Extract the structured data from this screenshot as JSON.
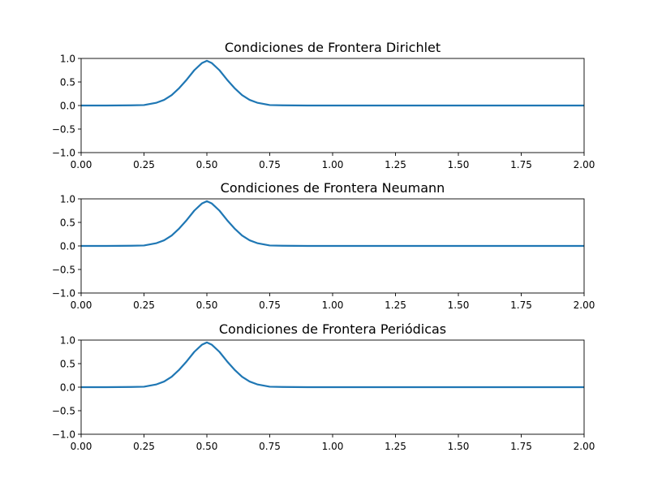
{
  "chart_data": [
    {
      "type": "line",
      "title": "Condiciones de Frontera Dirichlet",
      "xlabel": "",
      "ylabel": "",
      "xlim": [
        0,
        2
      ],
      "ylim": [
        -1,
        1
      ],
      "grid": false,
      "xticks": [
        "0.00",
        "0.25",
        "0.50",
        "0.75",
        "1.00",
        "1.25",
        "1.50",
        "1.75",
        "2.00"
      ],
      "yticks": [
        "−1.0",
        "−0.5",
        "0.0",
        "0.5",
        "1.0"
      ],
      "series": [
        {
          "color": "#1f77b4",
          "x": [
            0,
            0.1,
            0.2,
            0.25,
            0.3,
            0.33,
            0.36,
            0.39,
            0.42,
            0.45,
            0.48,
            0.5,
            0.52,
            0.55,
            0.58,
            0.61,
            0.64,
            0.67,
            0.7,
            0.75,
            0.8,
            0.9,
            1.0,
            1.25,
            1.5,
            1.75,
            2.0
          ],
          "y": [
            0,
            0,
            0.004,
            0.01,
            0.06,
            0.12,
            0.22,
            0.37,
            0.55,
            0.75,
            0.9,
            0.95,
            0.9,
            0.75,
            0.55,
            0.37,
            0.22,
            0.12,
            0.06,
            0.01,
            0.004,
            0,
            0,
            0,
            0,
            0,
            0
          ]
        }
      ]
    },
    {
      "type": "line",
      "title": "Condiciones de Frontera Neumann",
      "xlabel": "",
      "ylabel": "",
      "xlim": [
        0,
        2
      ],
      "ylim": [
        -1,
        1
      ],
      "grid": false,
      "xticks": [
        "0.00",
        "0.25",
        "0.50",
        "0.75",
        "1.00",
        "1.25",
        "1.50",
        "1.75",
        "2.00"
      ],
      "yticks": [
        "−1.0",
        "−0.5",
        "0.0",
        "0.5",
        "1.0"
      ],
      "series": [
        {
          "color": "#1f77b4",
          "x": [
            0,
            0.1,
            0.2,
            0.25,
            0.3,
            0.33,
            0.36,
            0.39,
            0.42,
            0.45,
            0.48,
            0.5,
            0.52,
            0.55,
            0.58,
            0.61,
            0.64,
            0.67,
            0.7,
            0.75,
            0.8,
            0.9,
            1.0,
            1.25,
            1.5,
            1.75,
            2.0
          ],
          "y": [
            0,
            0,
            0.004,
            0.01,
            0.06,
            0.12,
            0.22,
            0.37,
            0.55,
            0.75,
            0.9,
            0.95,
            0.9,
            0.75,
            0.55,
            0.37,
            0.22,
            0.12,
            0.06,
            0.01,
            0.004,
            0,
            0,
            0,
            0,
            0,
            0
          ]
        }
      ]
    },
    {
      "type": "line",
      "title": "Condiciones de Frontera Periódicas",
      "xlabel": "",
      "ylabel": "",
      "xlim": [
        0,
        2
      ],
      "ylim": [
        -1,
        1
      ],
      "grid": false,
      "xticks": [
        "0.00",
        "0.25",
        "0.50",
        "0.75",
        "1.00",
        "1.25",
        "1.50",
        "1.75",
        "2.00"
      ],
      "yticks": [
        "−1.0",
        "−0.5",
        "0.0",
        "0.5",
        "1.0"
      ],
      "series": [
        {
          "color": "#1f77b4",
          "x": [
            0,
            0.1,
            0.2,
            0.25,
            0.3,
            0.33,
            0.36,
            0.39,
            0.42,
            0.45,
            0.48,
            0.5,
            0.52,
            0.55,
            0.58,
            0.61,
            0.64,
            0.67,
            0.7,
            0.75,
            0.8,
            0.9,
            1.0,
            1.25,
            1.5,
            1.75,
            2.0
          ],
          "y": [
            0,
            0,
            0.004,
            0.01,
            0.06,
            0.12,
            0.22,
            0.37,
            0.55,
            0.75,
            0.9,
            0.95,
            0.9,
            0.75,
            0.55,
            0.37,
            0.22,
            0.12,
            0.06,
            0.01,
            0.004,
            0,
            0,
            0,
            0,
            0,
            0
          ]
        }
      ]
    }
  ]
}
